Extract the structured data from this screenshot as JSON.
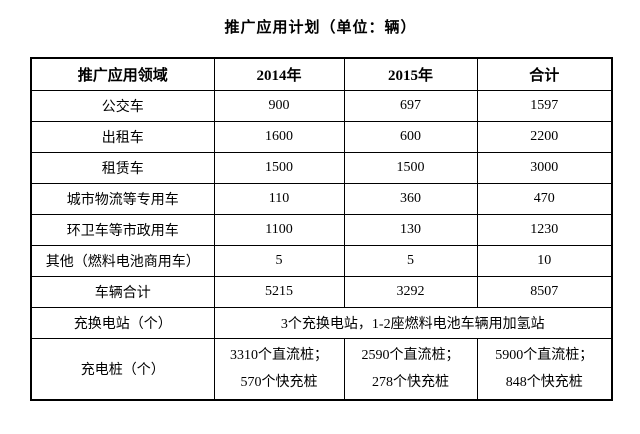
{
  "title": "推广应用计划（单位：辆）",
  "table": {
    "headers": [
      "推广应用领域",
      "2014年",
      "2015年",
      "合计"
    ],
    "rows": [
      {
        "label": "公交车",
        "v2014": "900",
        "v2015": "697",
        "total": "1597"
      },
      {
        "label": "出租车",
        "v2014": "1600",
        "v2015": "600",
        "total": "2200"
      },
      {
        "label": "租赁车",
        "v2014": "1500",
        "v2015": "1500",
        "total": "3000"
      },
      {
        "label": "城市物流等专用车",
        "v2014": "110",
        "v2015": "360",
        "total": "470"
      },
      {
        "label": "环卫车等市政用车",
        "v2014": "1100",
        "v2015": "130",
        "total": "1230"
      },
      {
        "label": "其他（燃料电池商用车）",
        "v2014": "5",
        "v2015": "5",
        "total": "10"
      },
      {
        "label": "车辆合计",
        "v2014": "5215",
        "v2015": "3292",
        "total": "8507"
      }
    ],
    "station_row": {
      "label": "充换电站（个）",
      "value": "3个充换电站，1-2座燃料电池车辆用加氢站"
    },
    "pile_row": {
      "label": "充电桩（个）",
      "v2014_line1": "3310个直流桩；",
      "v2014_line2": "570个快充桩",
      "v2015_line1": "2590个直流桩；",
      "v2015_line2": "278个快充桩",
      "total_line1": "5900个直流桩；",
      "total_line2": "848个快充桩"
    }
  }
}
